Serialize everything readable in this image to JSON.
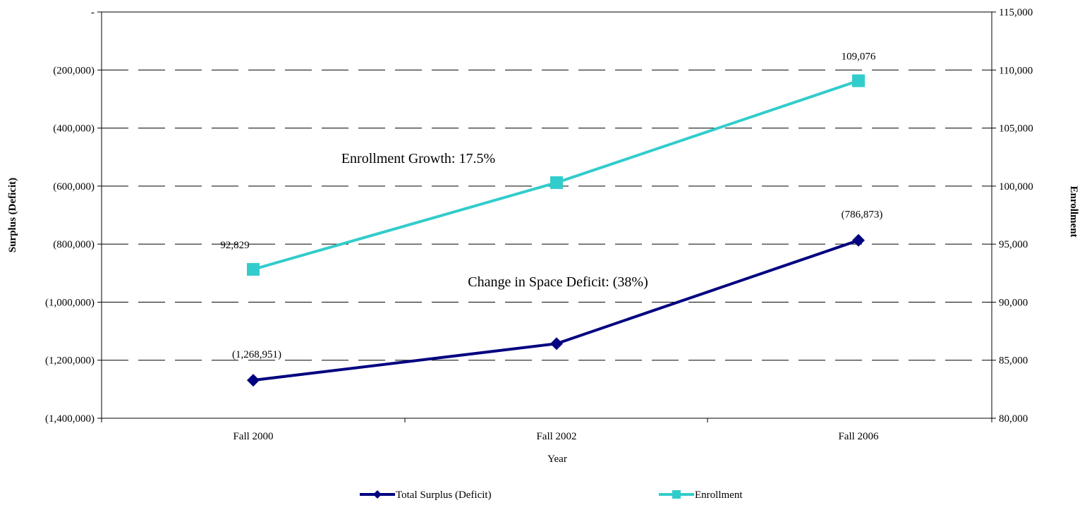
{
  "chart_data": {
    "type": "line",
    "categories": [
      "Fall 2000",
      "Fall 2002",
      "Fall 2006"
    ],
    "xlabel": "Year",
    "ylabel_left": "Surplus (Deficit)",
    "ylabel_right": "Enrollment",
    "ylim_left": [
      -1400000,
      0
    ],
    "ylim_right": [
      80000,
      115000
    ],
    "left_ticks": [
      "-",
      "(200,000)",
      "(400,000)",
      "(600,000)",
      "(800,000)",
      "(1,000,000)",
      "(1,200,000)",
      "(1,400,000)"
    ],
    "right_ticks": [
      "115,000",
      "110,000",
      "105,000",
      "100,000",
      "95,000",
      "90,000",
      "85,000",
      "80,000"
    ],
    "grid": "horizontal dashed",
    "legend_position": "bottom",
    "series": [
      {
        "name": "Total Surplus (Deficit)",
        "axis": "left",
        "values": [
          -1268951,
          -1143000,
          -786873
        ],
        "labels": [
          "(1,268,951)",
          "",
          "(786,873)"
        ],
        "color": "#000080",
        "marker": "diamond"
      },
      {
        "name": "Enrollment",
        "axis": "right",
        "values": [
          92829,
          100300,
          109076
        ],
        "labels": [
          "92,829",
          "",
          "109,076"
        ],
        "color": "#33CCCC",
        "marker": "square"
      }
    ],
    "annotations": [
      "Enrollment Growth: 17.5%",
      "Change in Space Deficit: (38%)"
    ]
  }
}
